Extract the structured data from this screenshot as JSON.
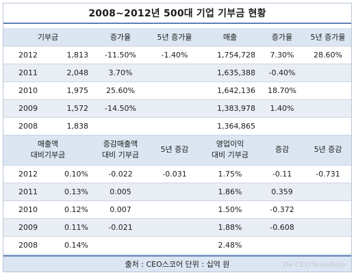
{
  "title": "2008~2012년 500대 기업 기부금 현황",
  "top_table": {
    "headers": [
      "기부금",
      "증가율",
      "5년 증가율",
      "매출",
      "증가율",
      "5년 증가율"
    ],
    "rows": [
      {
        "year": "2012",
        "donation": "1,813",
        "growth": "-11.50%",
        "growth5": "-1.40%",
        "sales": "1,754,728",
        "sales_growth": "7.30%",
        "sales_growth5": "28.60%"
      },
      {
        "year": "2011",
        "donation": "2,048",
        "growth": "3.70%",
        "growth5": "",
        "sales": "1,635,388",
        "sales_growth": "-0.40%",
        "sales_growth5": ""
      },
      {
        "year": "2010",
        "donation": "1,975",
        "growth": "25.60%",
        "growth5": "",
        "sales": "1,642,136",
        "sales_growth": "18.70%",
        "sales_growth5": ""
      },
      {
        "year": "2009",
        "donation": "1,572",
        "growth": "-14.50%",
        "growth5": "",
        "sales": "1,383,978",
        "sales_growth": "1.40%",
        "sales_growth5": ""
      },
      {
        "year": "2008",
        "donation": "1,838",
        "growth": "",
        "growth5": "",
        "sales": "1,364,865",
        "sales_growth": "",
        "sales_growth5": ""
      }
    ]
  },
  "bottom_table": {
    "headers": [
      "매출액\n대비기부금",
      "증감매출액\n대비 기부금",
      "5년 증감",
      "영업이익\n대비 기부금",
      "증감",
      "5년 증감"
    ],
    "rows": [
      {
        "year": "2012",
        "ratio": "0.10%",
        "ratio_change": "-0.022",
        "ratio_change5": "-0.031",
        "op_ratio": "1.75%",
        "op_change": "-0.11",
        "op_change5": "-0.731"
      },
      {
        "year": "2011",
        "ratio": "0.13%",
        "ratio_change": "0.005",
        "ratio_change5": "",
        "op_ratio": "1.86%",
        "op_change": "0.359",
        "op_change5": ""
      },
      {
        "year": "2010",
        "ratio": "0.12%",
        "ratio_change": "0.007",
        "ratio_change5": "",
        "op_ratio": "1.50%",
        "op_change": "-0.372",
        "op_change5": ""
      },
      {
        "year": "2009",
        "ratio": "0.11%",
        "ratio_change": "-0.021",
        "ratio_change5": "",
        "op_ratio": "1.88%",
        "op_change": "-0.608",
        "op_change5": ""
      },
      {
        "year": "2008",
        "ratio": "0.14%",
        "ratio_change": "",
        "ratio_change5": "",
        "op_ratio": "2.48%",
        "op_change": "",
        "op_change5": ""
      }
    ]
  },
  "footer": "출처 : CEO스코어 단위 : 십억 원",
  "watermark": "The CEO ScoreDaily"
}
